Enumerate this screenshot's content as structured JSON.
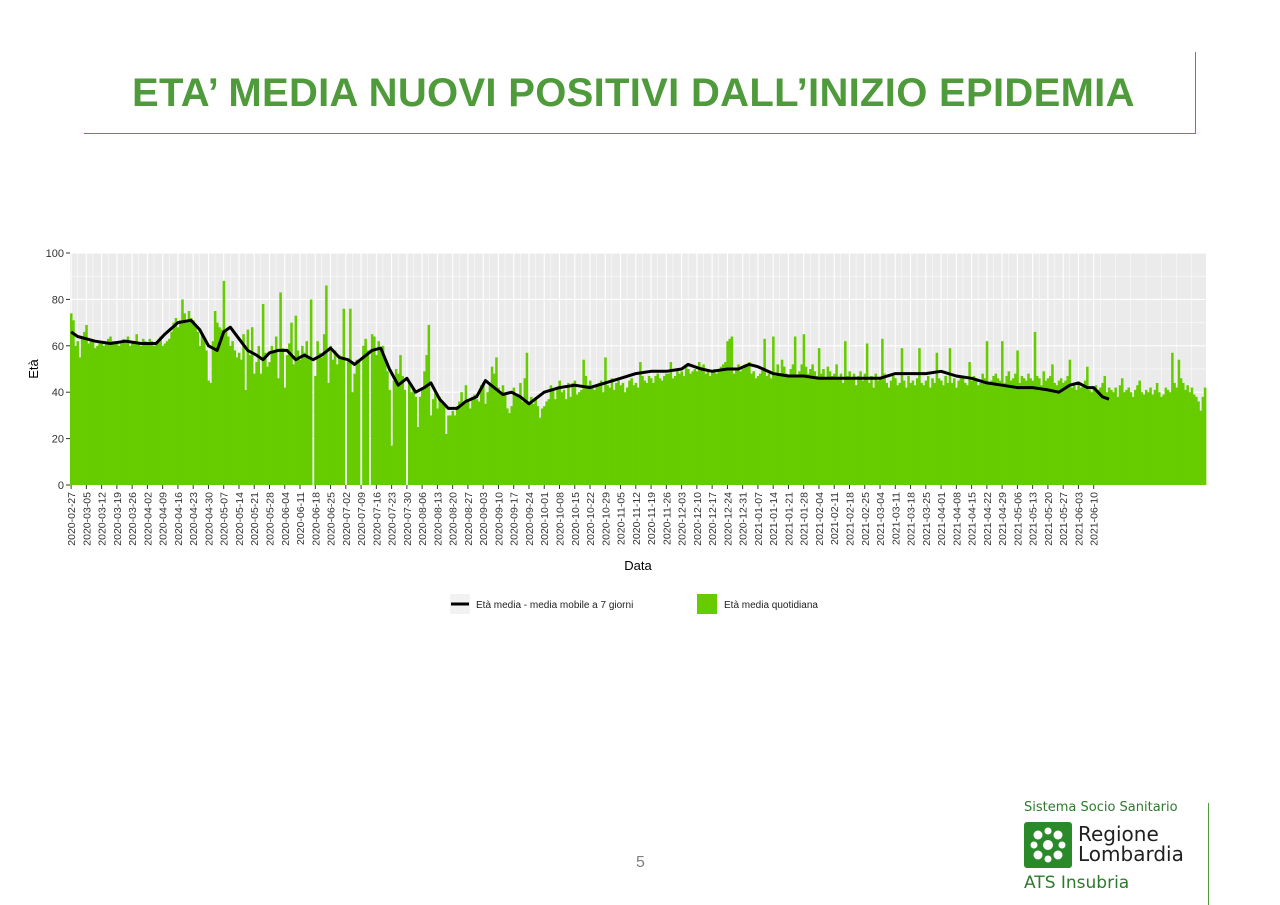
{
  "slide": {
    "title": "ETA’ MEDIA NUOVI POSITIVI DALL’INIZIO EPIDEMIA",
    "page_number": "5"
  },
  "logo": {
    "top": "Sistema Socio Sanitario",
    "name_line1": "Regione",
    "name_line2": "Lombardia",
    "bottom": "ATS Insubria",
    "mark_icon": "regione-lombardia-rosa-camuna-icon"
  },
  "colors": {
    "title": "#4f9a3a",
    "bar": "#66cc00",
    "line": "#000000",
    "panel": "#ebebeb",
    "grid": "#ffffff"
  },
  "chart_data": {
    "type": "bar",
    "xlabel": "Data",
    "ylabel": "Età",
    "ylim": [
      0,
      100
    ],
    "yticks": [
      0,
      20,
      40,
      60,
      80,
      100
    ],
    "grid": true,
    "legend_position": "bottom",
    "x_tick_labels": [
      "2020-02-27",
      "2020-03-05",
      "2020-03-12",
      "2020-03-19",
      "2020-03-26",
      "2020-04-02",
      "2020-04-09",
      "2020-04-16",
      "2020-04-23",
      "2020-04-30",
      "2020-05-07",
      "2020-05-14",
      "2020-05-21",
      "2020-05-28",
      "2020-06-04",
      "2020-06-11",
      "2020-06-18",
      "2020-06-25",
      "2020-07-02",
      "2020-07-09",
      "2020-07-16",
      "2020-07-23",
      "2020-07-30",
      "2020-08-06",
      "2020-08-13",
      "2020-08-20",
      "2020-08-27",
      "2020-09-03",
      "2020-09-10",
      "2020-09-17",
      "2020-09-24",
      "2020-10-01",
      "2020-10-08",
      "2020-10-15",
      "2020-10-22",
      "2020-10-29",
      "2020-11-05",
      "2020-11-12",
      "2020-11-19",
      "2020-11-26",
      "2020-12-03",
      "2020-12-10",
      "2020-12-17",
      "2020-12-24",
      "2020-12-31",
      "2021-01-07",
      "2021-01-14",
      "2021-01-21",
      "2021-01-28",
      "2021-02-04",
      "2021-02-11",
      "2021-02-18",
      "2021-02-25",
      "2021-03-04",
      "2021-03-11",
      "2021-03-18",
      "2021-03-25",
      "2021-04-01",
      "2021-04-08",
      "2021-04-15",
      "2021-04-22",
      "2021-04-29",
      "2021-05-06",
      "2021-05-13",
      "2021-05-20",
      "2021-05-27",
      "2021-06-03",
      "2021-06-10"
    ],
    "series": [
      {
        "name": "Età media quotidiana",
        "type": "bar",
        "color": "#66cc00",
        "values": [
          74,
          71,
          60,
          62,
          55,
          64,
          66,
          69,
          61,
          63,
          62,
          59,
          60,
          61,
          62,
          60,
          61,
          63,
          64,
          62,
          61,
          62,
          60,
          61,
          63,
          62,
          64,
          60,
          61,
          62,
          65,
          61,
          60,
          63,
          62,
          61,
          63,
          62,
          60,
          61,
          62,
          64,
          60,
          61,
          62,
          63,
          66,
          70,
          72,
          68,
          71,
          80,
          74,
          70,
          75,
          72,
          71,
          69,
          66,
          60,
          65,
          63,
          58,
          45,
          44,
          62,
          75,
          70,
          68,
          67,
          88,
          66,
          64,
          60,
          62,
          58,
          55,
          57,
          54,
          65,
          41,
          67,
          56,
          68,
          48,
          53,
          60,
          48,
          78,
          57,
          51,
          53,
          60,
          57,
          64,
          46,
          83,
          59,
          42,
          56,
          61,
          70,
          52,
          73,
          58,
          54,
          60,
          57,
          62,
          55,
          80,
          0,
          47,
          62,
          57,
          55,
          65,
          86,
          44,
          60,
          54,
          58,
          52,
          56,
          55,
          76,
          0,
          54,
          76,
          40,
          48,
          54,
          54,
          0,
          60,
          63,
          58,
          0,
          65,
          64,
          56,
          62,
          59,
          60,
          54,
          49,
          41,
          17,
          45,
          50,
          48,
          56,
          47,
          41,
          0,
          44,
          40,
          41,
          38,
          25,
          38,
          41,
          49,
          56,
          69,
          30,
          37,
          40,
          33,
          38,
          35,
          35,
          22,
          30,
          30,
          32,
          30,
          34,
          36,
          40,
          35,
          43,
          37,
          33,
          38,
          39,
          37,
          36,
          43,
          44,
          35,
          40,
          44,
          51,
          48,
          55,
          42,
          40,
          43,
          39,
          33,
          31,
          34,
          42,
          39,
          38,
          44,
          36,
          46,
          57,
          36,
          38,
          35,
          37,
          34,
          29,
          33,
          34,
          36,
          37,
          43,
          41,
          37,
          42,
          45,
          40,
          41,
          37,
          44,
          38,
          44,
          45,
          39,
          40,
          41,
          54,
          47,
          43,
          45,
          42,
          41,
          43,
          44,
          45,
          40,
          55,
          43,
          42,
          46,
          41,
          44,
          45,
          43,
          44,
          40,
          42,
          45,
          46,
          43,
          44,
          42,
          53,
          47,
          45,
          44,
          47,
          46,
          44,
          47,
          48,
          46,
          45,
          47,
          48,
          48,
          53,
          46,
          47,
          50,
          48,
          49,
          47,
          51,
          50,
          48,
          49,
          50,
          49,
          53,
          51,
          52,
          48,
          50,
          47,
          49,
          50,
          48,
          50,
          51,
          52,
          53,
          62,
          63,
          64,
          48,
          50,
          52,
          49,
          50,
          52,
          51,
          53,
          48,
          49,
          46,
          47,
          48,
          50,
          63,
          47,
          48,
          46,
          64,
          47,
          52,
          48,
          54,
          51,
          48,
          47,
          50,
          52,
          64,
          47,
          49,
          52,
          65,
          51,
          48,
          50,
          52,
          49,
          47,
          59,
          48,
          50,
          46,
          51,
          49,
          47,
          48,
          52,
          46,
          48,
          44,
          62,
          47,
          49,
          46,
          48,
          43,
          47,
          49,
          45,
          48,
          61,
          44,
          47,
          42,
          48,
          45,
          46,
          63,
          48,
          44,
          42,
          45,
          47,
          46,
          43,
          44,
          59,
          45,
          42,
          47,
          44,
          45,
          43,
          46,
          59,
          44,
          43,
          45,
          47,
          42,
          46,
          44,
          57,
          46,
          45,
          43,
          47,
          44,
          59,
          44,
          46,
          42,
          45,
          47,
          46,
          44,
          43,
          53,
          45,
          47,
          46,
          43,
          44,
          48,
          46,
          62,
          44,
          45,
          47,
          48,
          46,
          45,
          62,
          44,
          47,
          49,
          45,
          46,
          48,
          58,
          44,
          47,
          46,
          45,
          48,
          46,
          45,
          66,
          47,
          46,
          43,
          49,
          45,
          46,
          47,
          52,
          44,
          43,
          45,
          46,
          44,
          45,
          47,
          54,
          42,
          43,
          41,
          44,
          42,
          43,
          45,
          51,
          41,
          40,
          42,
          43,
          41,
          42,
          44,
          47,
          40,
          42,
          41,
          40,
          42,
          38,
          43,
          46,
          40,
          41,
          42,
          40,
          38,
          41,
          43,
          45,
          40,
          39,
          41,
          40,
          42,
          39,
          41,
          44,
          40,
          38,
          39,
          42,
          41,
          40,
          57,
          44,
          42,
          54,
          46,
          44,
          41,
          43,
          40,
          42,
          39,
          38,
          36,
          32,
          38,
          42
        ]
      },
      {
        "name": "Età media - media mobile a 7 giorni",
        "type": "line",
        "color": "#000000",
        "anchors": [
          [
            "2020-02-27",
            66
          ],
          [
            "2020-03-01",
            64
          ],
          [
            "2020-03-05",
            63
          ],
          [
            "2020-03-09",
            62
          ],
          [
            "2020-03-16",
            61
          ],
          [
            "2020-03-23",
            62
          ],
          [
            "2020-03-30",
            61
          ],
          [
            "2020-04-06",
            61
          ],
          [
            "2020-04-10",
            65
          ],
          [
            "2020-04-16",
            70
          ],
          [
            "2020-04-22",
            71
          ],
          [
            "2020-04-26",
            67
          ],
          [
            "2020-04-30",
            60
          ],
          [
            "2020-05-04",
            58
          ],
          [
            "2020-05-07",
            66
          ],
          [
            "2020-05-10",
            68
          ],
          [
            "2020-05-14",
            63
          ],
          [
            "2020-05-18",
            58
          ],
          [
            "2020-05-22",
            56
          ],
          [
            "2020-05-25",
            54
          ],
          [
            "2020-05-28",
            57
          ],
          [
            "2020-06-01",
            58
          ],
          [
            "2020-06-05",
            58
          ],
          [
            "2020-06-09",
            54
          ],
          [
            "2020-06-13",
            56
          ],
          [
            "2020-06-17",
            54
          ],
          [
            "2020-06-21",
            56
          ],
          [
            "2020-06-25",
            59
          ],
          [
            "2020-06-29",
            55
          ],
          [
            "2020-07-03",
            54
          ],
          [
            "2020-07-06",
            52
          ],
          [
            "2020-07-10",
            55
          ],
          [
            "2020-07-14",
            58
          ],
          [
            "2020-07-18",
            59
          ],
          [
            "2020-07-22",
            50
          ],
          [
            "2020-07-26",
            43
          ],
          [
            "2020-07-30",
            46
          ],
          [
            "2020-08-03",
            40
          ],
          [
            "2020-08-07",
            42
          ],
          [
            "2020-08-10",
            44
          ],
          [
            "2020-08-14",
            37
          ],
          [
            "2020-08-18",
            33
          ],
          [
            "2020-08-22",
            33
          ],
          [
            "2020-08-26",
            36
          ],
          [
            "2020-08-31",
            38
          ],
          [
            "2020-09-04",
            45
          ],
          [
            "2020-09-08",
            42
          ],
          [
            "2020-09-12",
            39
          ],
          [
            "2020-09-16",
            40
          ],
          [
            "2020-09-20",
            38
          ],
          [
            "2020-09-24",
            35
          ],
          [
            "2020-10-01",
            40
          ],
          [
            "2020-10-08",
            42
          ],
          [
            "2020-10-15",
            43
          ],
          [
            "2020-10-22",
            42
          ],
          [
            "2020-10-29",
            44
          ],
          [
            "2020-11-05",
            46
          ],
          [
            "2020-11-12",
            48
          ],
          [
            "2020-11-19",
            49
          ],
          [
            "2020-11-26",
            49
          ],
          [
            "2020-12-03",
            50
          ],
          [
            "2020-12-06",
            52
          ],
          [
            "2020-12-12",
            50
          ],
          [
            "2020-12-17",
            49
          ],
          [
            "2020-12-24",
            50
          ],
          [
            "2020-12-29",
            50
          ],
          [
            "2021-01-03",
            52
          ],
          [
            "2021-01-07",
            51
          ],
          [
            "2021-01-14",
            48
          ],
          [
            "2021-01-21",
            47
          ],
          [
            "2021-01-28",
            47
          ],
          [
            "2021-02-04",
            46
          ],
          [
            "2021-02-11",
            46
          ],
          [
            "2021-02-18",
            46
          ],
          [
            "2021-02-25",
            46
          ],
          [
            "2021-03-04",
            46
          ],
          [
            "2021-03-11",
            48
          ],
          [
            "2021-03-18",
            48
          ],
          [
            "2021-03-25",
            48
          ],
          [
            "2021-04-01",
            49
          ],
          [
            "2021-04-08",
            47
          ],
          [
            "2021-04-15",
            46
          ],
          [
            "2021-04-22",
            44
          ],
          [
            "2021-04-29",
            43
          ],
          [
            "2021-05-06",
            42
          ],
          [
            "2021-05-13",
            42
          ],
          [
            "2021-05-20",
            41
          ],
          [
            "2021-05-25",
            40
          ],
          [
            "2021-05-30",
            43
          ],
          [
            "2021-06-03",
            44
          ],
          [
            "2021-06-07",
            42
          ],
          [
            "2021-06-10",
            42
          ],
          [
            "2021-06-14",
            38
          ],
          [
            "2021-06-17",
            37
          ]
        ]
      }
    ]
  }
}
